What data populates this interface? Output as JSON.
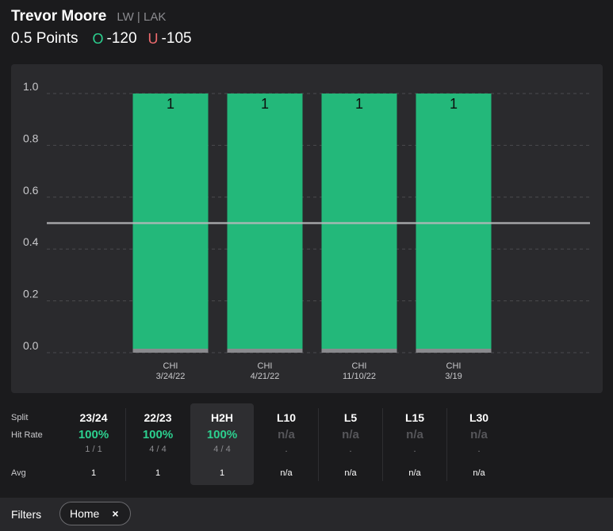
{
  "player": {
    "name": "Trevor Moore",
    "meta": "LW | LAK"
  },
  "line": {
    "label": "0.5 Points",
    "over_letter": "O",
    "over_odds": "-120",
    "under_letter": "U",
    "under_odds": "-105"
  },
  "colors": {
    "bar": "#23b87a",
    "bar_base": "#8a8a8e",
    "line": "#b9b9bc",
    "grid": "#4a4a4e",
    "good": "#2cd08f",
    "under": "#ee6b6e"
  },
  "chart_data": {
    "type": "bar",
    "categories": [
      {
        "opponent": "CHI",
        "date": "3/24/22"
      },
      {
        "opponent": "CHI",
        "date": "4/21/22"
      },
      {
        "opponent": "CHI",
        "date": "11/10/22"
      },
      {
        "opponent": "CHI",
        "date": "3/19"
      }
    ],
    "values": [
      1,
      1,
      1,
      1
    ],
    "data_labels": [
      "1",
      "1",
      "1",
      "1"
    ],
    "ylim": [
      0,
      1.0
    ],
    "yticks": [
      0.0,
      0.2,
      0.4,
      0.6,
      0.8,
      1.0
    ],
    "ytick_labels": [
      "0.0",
      "0.2",
      "0.4",
      "0.6",
      "0.8",
      "1.0"
    ],
    "threshold": 0.5,
    "grid": true
  },
  "stats": {
    "labels": {
      "split": "Split",
      "hit_rate": "Hit Rate",
      "avg": "Avg"
    },
    "columns": [
      {
        "split": "23/24",
        "hit_rate": "100%",
        "fraction": "1 / 1",
        "avg": "1",
        "active": false,
        "status": "good"
      },
      {
        "split": "22/23",
        "hit_rate": "100%",
        "fraction": "4 / 4",
        "avg": "1",
        "active": false,
        "status": "good"
      },
      {
        "split": "H2H",
        "hit_rate": "100%",
        "fraction": "4 / 4",
        "avg": "1",
        "active": true,
        "status": "good"
      },
      {
        "split": "L10",
        "hit_rate": "n/a",
        "fraction": ".",
        "avg": "n/a",
        "active": false,
        "status": "na"
      },
      {
        "split": "L5",
        "hit_rate": "n/a",
        "fraction": ".",
        "avg": "n/a",
        "active": false,
        "status": "na"
      },
      {
        "split": "L15",
        "hit_rate": "n/a",
        "fraction": ".",
        "avg": "n/a",
        "active": false,
        "status": "na"
      },
      {
        "split": "L30",
        "hit_rate": "n/a",
        "fraction": ".",
        "avg": "n/a",
        "active": false,
        "status": "na"
      }
    ]
  },
  "filters": {
    "label": "Filters",
    "chips": [
      {
        "label": "Home",
        "close": "×"
      }
    ]
  }
}
